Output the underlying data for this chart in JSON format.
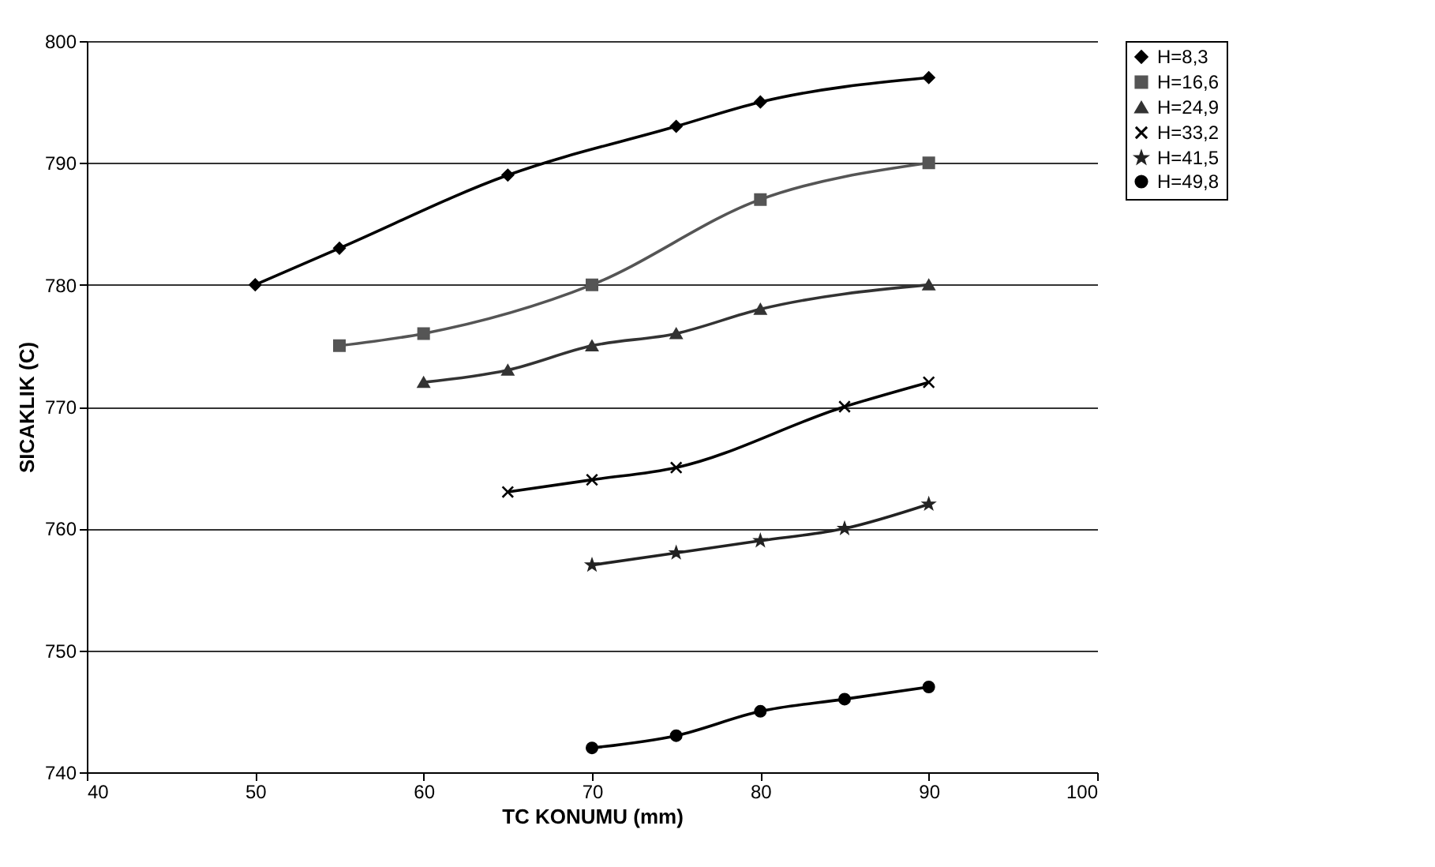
{
  "chart_data": {
    "type": "line",
    "xlabel": "TC KONUMU (mm)",
    "ylabel": "SICAKLIK (C)",
    "xlim": [
      40,
      100
    ],
    "xticks": [
      40,
      50,
      60,
      70,
      80,
      90,
      100
    ],
    "ylim": [
      740,
      800
    ],
    "yticks": [
      740,
      750,
      760,
      770,
      780,
      790,
      800
    ],
    "grid": "y",
    "legend": "right",
    "line_style": "solid",
    "series": [
      {
        "name": "H=8,3",
        "color": "#000000",
        "marker": "diamond",
        "x": [
          50,
          55,
          65,
          75,
          80,
          90
        ],
        "values": [
          780,
          783,
          789,
          793,
          795,
          797
        ]
      },
      {
        "name": "H=16,6",
        "color": "#555555",
        "marker": "square",
        "x": [
          55,
          60,
          70,
          80,
          90
        ],
        "values": [
          775,
          776,
          780,
          787,
          790
        ]
      },
      {
        "name": "H=24,9",
        "color": "#333333",
        "marker": "triangle",
        "x": [
          60,
          65,
          70,
          75,
          80,
          90
        ],
        "values": [
          772,
          773,
          775,
          776,
          778,
          780
        ]
      },
      {
        "name": "H=33,2",
        "color": "#000000",
        "marker": "cross",
        "x": [
          65,
          70,
          75,
          85,
          90
        ],
        "values": [
          763,
          764,
          765,
          770,
          772
        ]
      },
      {
        "name": "H=41,5",
        "color": "#222222",
        "marker": "star",
        "x": [
          70,
          75,
          80,
          85,
          90
        ],
        "values": [
          757,
          758,
          759,
          760,
          762
        ]
      },
      {
        "name": "H=49,8",
        "color": "#000000",
        "marker": "circle",
        "x": [
          70,
          75,
          80,
          85,
          90
        ],
        "values": [
          742,
          743,
          745,
          746,
          747
        ]
      }
    ]
  }
}
